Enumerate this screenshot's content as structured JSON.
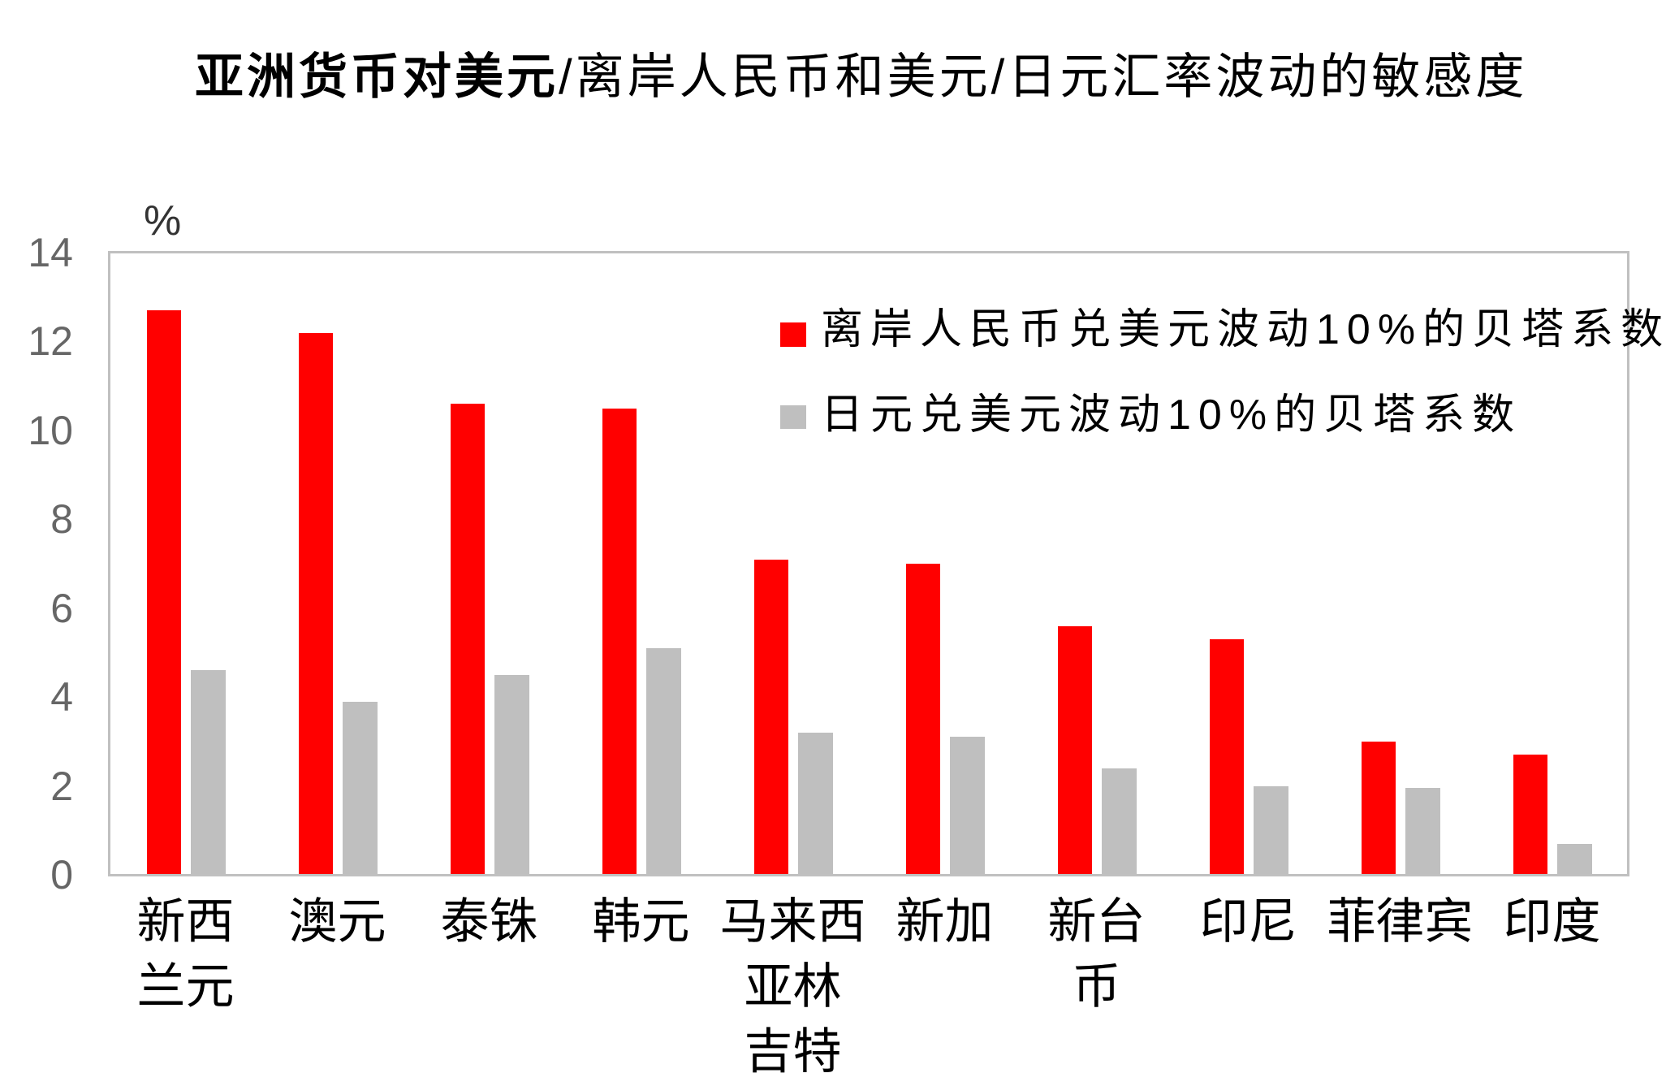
{
  "chart_data": {
    "type": "bar",
    "title": "亚洲货币对美元/离岸人民币和美元/日元汇率波动的敏感度",
    "title_parts": {
      "bold": "亚洲货币对美元",
      "regular": "/离岸人民币和美元/日元汇率波动的敏感度"
    },
    "xlabel": "",
    "ylabel": "%",
    "ylim": [
      0,
      14
    ],
    "yticks": [
      0,
      2,
      4,
      6,
      8,
      10,
      12,
      14
    ],
    "grid": false,
    "legend_position": "upper right, inside plot",
    "categories": [
      "新西兰元",
      "澳元",
      "泰铢",
      "韩元",
      "马来西亚林吉特",
      "新加",
      "新台币",
      "印尼",
      "菲律宾",
      "印度"
    ],
    "category_label_lines": [
      [
        "新西",
        "兰元"
      ],
      [
        "澳元"
      ],
      [
        "泰铢"
      ],
      [
        "韩元"
      ],
      [
        "马来西",
        "亚林",
        "吉特"
      ],
      [
        "新加"
      ],
      [
        "新台",
        "币"
      ],
      [
        "印尼"
      ],
      [
        "菲律宾"
      ],
      [
        "印度"
      ]
    ],
    "series": [
      {
        "name": "离岸人民币兑美元波动10%的贝塔系数",
        "color": "#FF0000",
        "values": [
          12.7,
          12.2,
          10.6,
          10.5,
          7.1,
          7.0,
          5.6,
          5.3,
          3.0,
          2.7
        ]
      },
      {
        "name": "日元兑美元波动10%的贝塔系数",
        "color": "#BFBFBF",
        "values": [
          4.6,
          3.9,
          4.5,
          5.1,
          3.2,
          3.1,
          2.4,
          2.0,
          1.95,
          0.7
        ]
      }
    ]
  }
}
